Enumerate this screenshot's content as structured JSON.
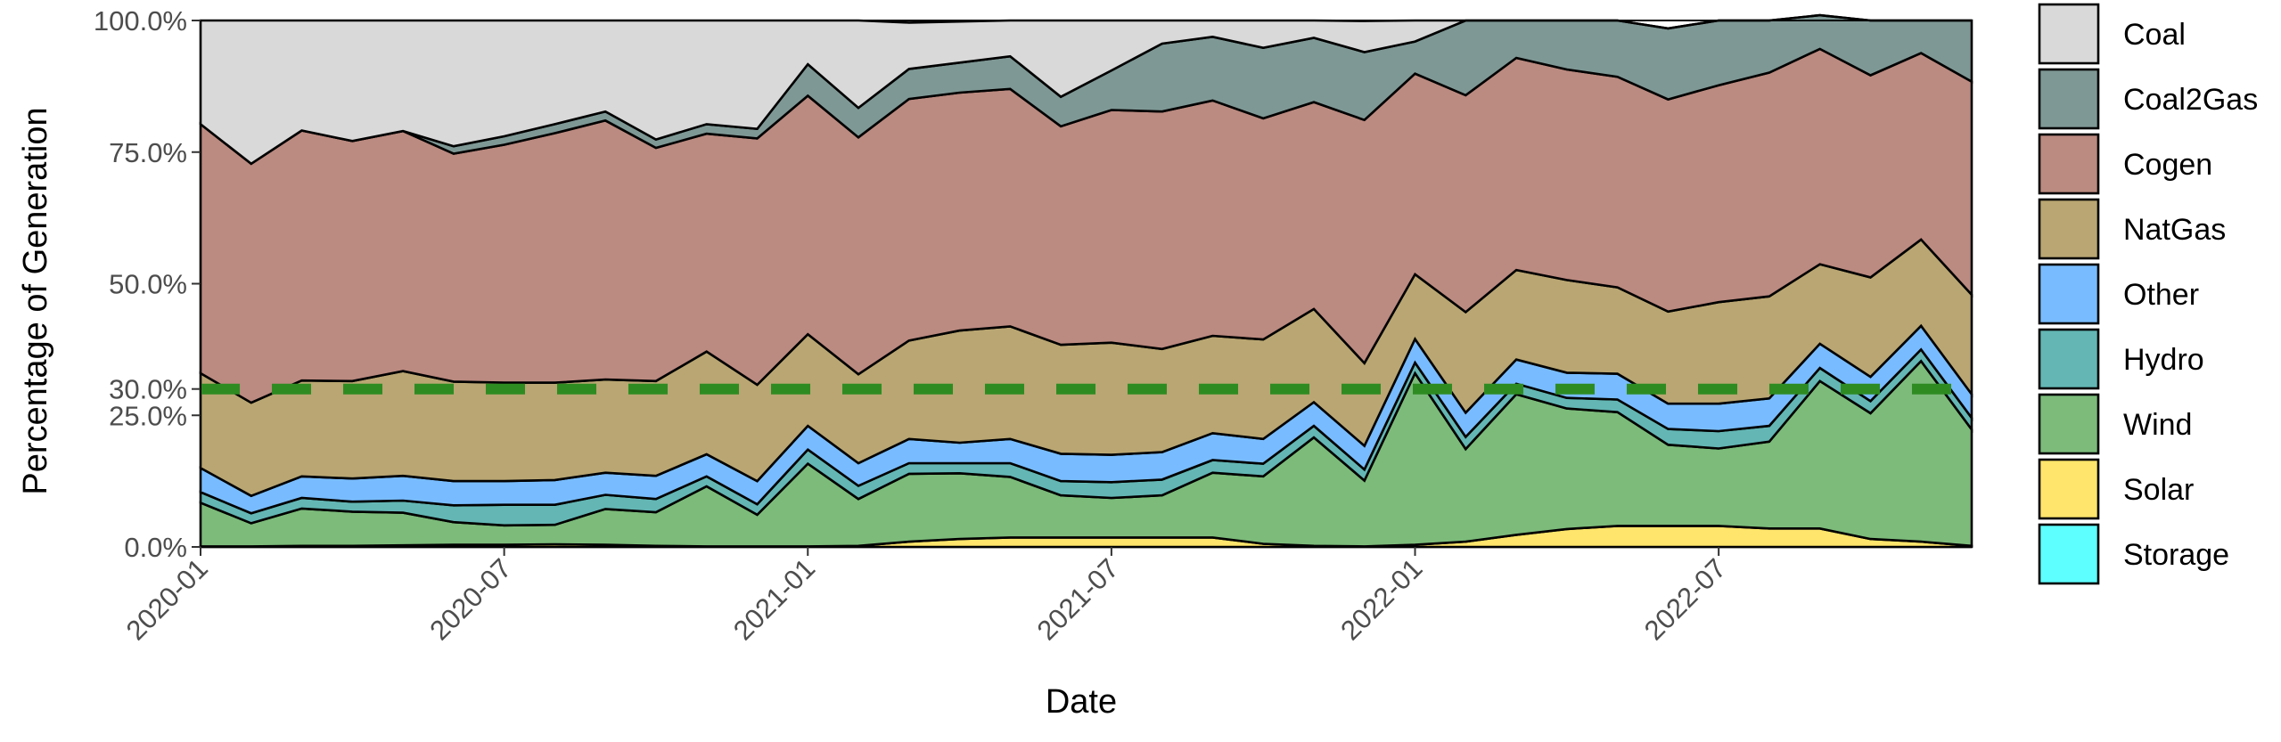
{
  "chart_data": {
    "type": "area",
    "stacked": true,
    "xlabel": "Date",
    "ylabel": "Percentage of Generation",
    "ylim": [
      0,
      100
    ],
    "x": [
      "2020-01",
      "2020-02",
      "2020-03",
      "2020-04",
      "2020-05",
      "2020-06",
      "2020-07",
      "2020-08",
      "2020-09",
      "2020-10",
      "2020-11",
      "2020-12",
      "2021-01",
      "2021-02",
      "2021-03",
      "2021-04",
      "2021-05",
      "2021-06",
      "2021-07",
      "2021-08",
      "2021-09",
      "2021-10",
      "2021-11",
      "2021-12",
      "2022-01",
      "2022-02",
      "2022-03",
      "2022-04",
      "2022-05",
      "2022-06",
      "2022-07",
      "2022-08",
      "2022-09",
      "2022-10",
      "2022-11",
      "2022-12"
    ],
    "x_ticks": [
      "2020-01",
      "2020-07",
      "2021-01",
      "2021-07",
      "2022-01",
      "2022-07"
    ],
    "y_ticks": [
      {
        "value": 0,
        "label": "0.0%"
      },
      {
        "value": 25,
        "label": "25.0%"
      },
      {
        "value": 30,
        "label": "30.0%"
      },
      {
        "value": 50,
        "label": "50.0%"
      },
      {
        "value": 75,
        "label": "75.0%"
      },
      {
        "value": 100,
        "label": "100.0%"
      }
    ],
    "reference_line": {
      "value": 30,
      "style": "dashed",
      "color": "#2e8b22"
    },
    "grid": false,
    "legend_position": "right",
    "series": [
      {
        "name": "Storage",
        "color": "#5effff",
        "values": [
          0,
          0,
          0,
          0,
          0,
          0,
          0,
          0,
          0,
          0,
          0,
          0,
          0,
          0,
          0,
          0,
          0,
          0,
          0,
          0,
          0,
          0,
          0,
          0,
          0,
          0,
          0,
          0,
          0,
          0,
          0,
          0,
          0,
          0,
          0,
          0
        ]
      },
      {
        "name": "Solar",
        "color": "#ffe56b",
        "values": [
          0.1,
          0.1,
          0.2,
          0.2,
          0.3,
          0.4,
          0.4,
          0.5,
          0.4,
          0.2,
          0.1,
          0.1,
          0.1,
          0.2,
          1.0,
          1.5,
          1.8,
          1.8,
          1.8,
          1.8,
          1.8,
          0.6,
          0.2,
          0.1,
          0.4,
          1.0,
          2.3,
          3.4,
          4.0,
          4.0,
          4.0,
          3.5,
          3.5,
          1.5,
          1.0,
          0.2
        ]
      },
      {
        "name": "Wind",
        "color": "#7cbb7a",
        "values": [
          8.3,
          4.4,
          7.1,
          6.5,
          6.2,
          4.3,
          3.7,
          3.7,
          6.8,
          6.4,
          11.4,
          6.0,
          15.7,
          8.9,
          12.9,
          12.5,
          11.5,
          8.0,
          7.5,
          8.0,
          12.3,
          12.8,
          20.6,
          12.5,
          32.6,
          17.6,
          26.7,
          22.9,
          21.6,
          15.4,
          14.7,
          16.5,
          28.0,
          23.9,
          34.3,
          22.1
        ]
      },
      {
        "name": "Hydro",
        "color": "#63b6b4",
        "values": [
          2.0,
          1.9,
          2.0,
          1.9,
          2.3,
          3.2,
          3.9,
          3.8,
          2.7,
          2.5,
          1.9,
          2.0,
          2.7,
          2.5,
          2.0,
          1.9,
          2.6,
          2.7,
          3.0,
          3.0,
          2.4,
          2.4,
          2.2,
          2.1,
          2.0,
          2.3,
          2.0,
          2.0,
          2.4,
          3.0,
          3.3,
          3.0,
          2.5,
          2.3,
          2.2,
          2.2
        ]
      },
      {
        "name": "Other",
        "color": "#78bcff",
        "values": [
          4.6,
          3.3,
          4.1,
          4.4,
          4.7,
          4.6,
          4.5,
          4.7,
          4.2,
          4.4,
          4.2,
          4.4,
          4.5,
          4.3,
          4.6,
          3.9,
          4.6,
          5.2,
          5.2,
          5.2,
          5.1,
          4.7,
          4.5,
          4.5,
          4.5,
          4.6,
          4.6,
          4.8,
          4.9,
          4.8,
          5.2,
          5.2,
          4.6,
          4.6,
          4.5,
          4.5
        ]
      },
      {
        "name": "NatGas",
        "color": "#b9a672",
        "values": [
          18.0,
          17.7,
          18.2,
          18.5,
          19.9,
          18.9,
          18.7,
          18.5,
          17.7,
          18.0,
          19.5,
          18.3,
          17.4,
          16.9,
          18.7,
          21.3,
          21.4,
          20.7,
          21.3,
          19.6,
          18.5,
          18.9,
          17.7,
          15.7,
          12.3,
          19.1,
          17.0,
          17.6,
          16.4,
          17.5,
          19.3,
          19.4,
          15.1,
          18.9,
          16.4,
          18.9
        ]
      },
      {
        "name": "Cogen",
        "color": "#bb8a80",
        "values": [
          47.3,
          45.4,
          47.5,
          45.6,
          45.6,
          43.3,
          45.2,
          47.4,
          49.2,
          44.3,
          41.4,
          46.8,
          45.3,
          45.0,
          45.9,
          45.2,
          45.1,
          41.5,
          44.2,
          45.1,
          44.7,
          42.0,
          39.3,
          46.2,
          38.1,
          41.2,
          40.3,
          40.0,
          40.0,
          40.3,
          41.2,
          42.5,
          40.9,
          38.4,
          35.4,
          40.5
        ]
      },
      {
        "name": "Coal2Gas",
        "color": "#7e9895",
        "values": [
          0,
          0,
          0,
          0,
          0,
          1.4,
          1.6,
          1.7,
          1.7,
          1.6,
          1.8,
          1.8,
          6.0,
          5.6,
          5.7,
          5.7,
          6.2,
          5.6,
          7.5,
          12.9,
          12.1,
          13.4,
          12.2,
          12.9,
          6.1,
          14.2,
          7.1,
          9.3,
          10.7,
          13.5,
          12.3,
          9.9,
          6.4,
          10.4,
          6.2,
          11.6
        ]
      },
      {
        "name": "Coal",
        "color": "#d9d9d9",
        "values": [
          19.7,
          27.2,
          20.9,
          22.9,
          21.0,
          23.9,
          22.0,
          19.7,
          17.3,
          22.6,
          19.7,
          20.6,
          8.3,
          16.6,
          8.8,
          7.8,
          6.8,
          14.5,
          9.5,
          4.4,
          3.1,
          5.2,
          3.3,
          5.9,
          4.0,
          0,
          0,
          0,
          0,
          0,
          0,
          0,
          0,
          0,
          0,
          0
        ]
      }
    ]
  }
}
